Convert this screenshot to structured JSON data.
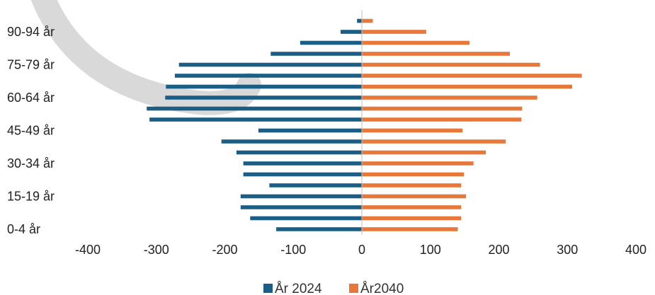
{
  "chart_data": {
    "type": "bar",
    "orientation": "horizontal",
    "layout": "population-pyramid",
    "categories": [
      "0-4 år",
      "5-9 år",
      "10-14 år",
      "15-19 år",
      "20-24 år",
      "25-29 år",
      "30-34 år",
      "35-39 år",
      "40-44 år",
      "45-49 år",
      "50-54 år",
      "55-59 år",
      "60-64 år",
      "65-69 år",
      "70-74 år",
      "75-79 år",
      "80-84 år",
      "85-89 år",
      "90-94 år",
      "95+ år"
    ],
    "category_labels_shown": [
      "0-4 år",
      "15-19 år",
      "30-34 år",
      "45-49 år",
      "60-64 år",
      "75-79 år",
      "90-94 år"
    ],
    "series": [
      {
        "name": "År 2024",
        "color": "#1b5e85",
        "values": [
          -125,
          -163,
          -177,
          -177,
          -135,
          -173,
          -173,
          -183,
          -205,
          -151,
          -310,
          -314,
          -287,
          -286,
          -273,
          -267,
          -133,
          -90,
          -31,
          -7
        ]
      },
      {
        "name": "År2040",
        "color": "#e8773a",
        "values": [
          140,
          145,
          145,
          152,
          145,
          149,
          163,
          181,
          210,
          147,
          233,
          234,
          256,
          307,
          321,
          260,
          216,
          157,
          94,
          16
        ]
      }
    ],
    "xlim": [
      -400,
      400
    ],
    "xticks": [
      "-400",
      "-300",
      "-200",
      "-100",
      "0",
      "100",
      "200",
      "300",
      "400"
    ],
    "grid": false,
    "legend": "bottom-center"
  }
}
